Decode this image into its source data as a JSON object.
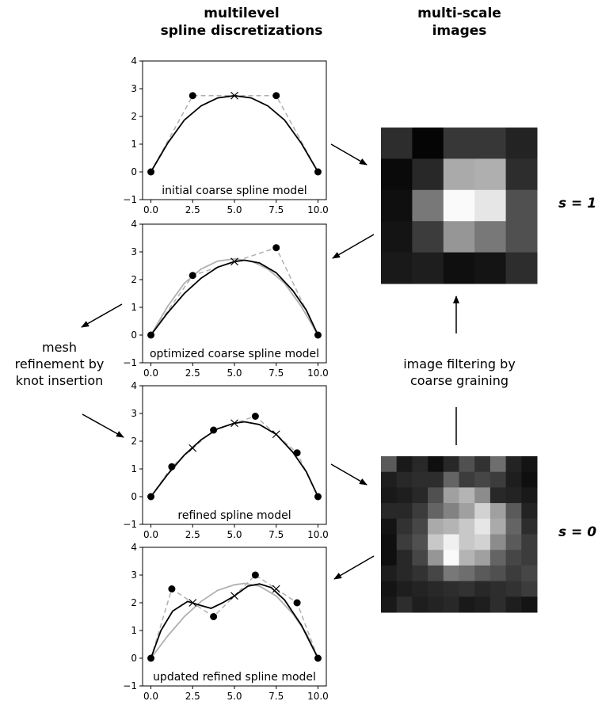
{
  "headers": {
    "left_line1": "multilevel",
    "left_line2": "spline discretizations",
    "right_line1": "multi-scale",
    "right_line2": "images"
  },
  "annotations": {
    "mesh_line1": "mesh",
    "mesh_line2": "refinement by",
    "mesh_line3": "knot insertion",
    "filter_line1": "image filtering by",
    "filter_line2": "coarse graining",
    "scale_coarse": "s = 1",
    "scale_fine": "s = 0"
  },
  "x_tick_labels": [
    "0.0",
    "2.5",
    "5.0",
    "7.5",
    "10.0"
  ],
  "y_tick_labels": [
    "−1",
    "0",
    "1",
    "2",
    "3",
    "4"
  ],
  "chart_data": [
    {
      "type": "line",
      "caption": "initial coarse spline model",
      "xlim": [
        -0.5,
        10.5
      ],
      "ylim": [
        -1,
        4
      ],
      "control_points": [
        [
          0,
          0
        ],
        [
          2.5,
          2.75
        ],
        [
          7.5,
          2.75
        ],
        [
          10,
          0
        ]
      ],
      "knots": [
        [
          5,
          2.75
        ]
      ],
      "reference_curve": [],
      "spline_curve": [
        [
          0,
          0
        ],
        [
          1,
          1.03
        ],
        [
          2,
          1.87
        ],
        [
          3,
          2.38
        ],
        [
          4,
          2.67
        ],
        [
          5,
          2.75
        ],
        [
          6,
          2.67
        ],
        [
          7,
          2.38
        ],
        [
          8,
          1.87
        ],
        [
          9,
          1.03
        ],
        [
          10,
          0
        ]
      ]
    },
    {
      "type": "line",
      "caption": "optimized coarse spline model",
      "xlim": [
        -0.5,
        10.5
      ],
      "ylim": [
        -1,
        4
      ],
      "control_points": [
        [
          0,
          0
        ],
        [
          2.5,
          2.15
        ],
        [
          7.5,
          3.15
        ],
        [
          10,
          0
        ]
      ],
      "knots": [
        [
          5,
          2.65
        ]
      ],
      "reference_curve": [
        [
          0,
          0
        ],
        [
          1,
          1.03
        ],
        [
          2,
          1.87
        ],
        [
          3,
          2.38
        ],
        [
          4,
          2.67
        ],
        [
          5,
          2.75
        ],
        [
          6,
          2.67
        ],
        [
          7,
          2.38
        ],
        [
          8,
          1.87
        ],
        [
          9,
          1.03
        ],
        [
          10,
          0
        ]
      ],
      "spline_curve": [
        [
          0,
          0
        ],
        [
          1,
          0.8
        ],
        [
          2,
          1.5
        ],
        [
          3,
          2.05
        ],
        [
          4,
          2.45
        ],
        [
          5,
          2.65
        ],
        [
          5.6,
          2.7
        ],
        [
          6.5,
          2.6
        ],
        [
          7.5,
          2.25
        ],
        [
          8.5,
          1.6
        ],
        [
          9.3,
          0.9
        ],
        [
          10,
          0
        ]
      ]
    },
    {
      "type": "line",
      "caption": "refined spline model",
      "xlim": [
        -0.5,
        10.5
      ],
      "ylim": [
        -1,
        4
      ],
      "control_points": [
        [
          0,
          0
        ],
        [
          1.25,
          1.08
        ],
        [
          3.75,
          2.4
        ],
        [
          6.25,
          2.9
        ],
        [
          8.75,
          1.58
        ],
        [
          10,
          0
        ]
      ],
      "knots": [
        [
          2.5,
          1.75
        ],
        [
          5,
          2.65
        ],
        [
          7.5,
          2.25
        ]
      ],
      "reference_curve": [],
      "spline_curve": [
        [
          0,
          0
        ],
        [
          1,
          0.8
        ],
        [
          2,
          1.5
        ],
        [
          3,
          2.05
        ],
        [
          4,
          2.45
        ],
        [
          5,
          2.65
        ],
        [
          5.6,
          2.7
        ],
        [
          6.5,
          2.6
        ],
        [
          7.5,
          2.25
        ],
        [
          8.5,
          1.6
        ],
        [
          9.3,
          0.9
        ],
        [
          10,
          0
        ]
      ]
    },
    {
      "type": "line",
      "caption": "updated refined spline model",
      "xlim": [
        -0.5,
        10.5
      ],
      "ylim": [
        -1,
        4
      ],
      "control_points": [
        [
          0,
          0
        ],
        [
          1.25,
          2.5
        ],
        [
          3.75,
          1.5
        ],
        [
          6.25,
          3.0
        ],
        [
          8.75,
          2.0
        ],
        [
          10,
          0
        ]
      ],
      "knots": [
        [
          2.5,
          2.0
        ],
        [
          5,
          2.25
        ],
        [
          7.5,
          2.5
        ]
      ],
      "reference_curve": [
        [
          0,
          0
        ],
        [
          1,
          0.8
        ],
        [
          2,
          1.5
        ],
        [
          3,
          2.05
        ],
        [
          4,
          2.45
        ],
        [
          5,
          2.65
        ],
        [
          5.6,
          2.7
        ],
        [
          6.5,
          2.6
        ],
        [
          7.5,
          2.25
        ],
        [
          8.5,
          1.6
        ],
        [
          9.3,
          0.9
        ],
        [
          10,
          0
        ]
      ],
      "spline_curve": [
        [
          0,
          0
        ],
        [
          0.6,
          1.0
        ],
        [
          1.3,
          1.7
        ],
        [
          2.2,
          2.05
        ],
        [
          3.0,
          1.9
        ],
        [
          3.6,
          1.8
        ],
        [
          4.3,
          2.0
        ],
        [
          5,
          2.25
        ],
        [
          5.8,
          2.6
        ],
        [
          6.5,
          2.68
        ],
        [
          7.2,
          2.55
        ],
        [
          8.0,
          2.1
        ],
        [
          9.0,
          1.2
        ],
        [
          10,
          0
        ]
      ]
    }
  ],
  "images": [
    {
      "scale": "s = 1",
      "grid": [
        [
          45,
          5,
          55,
          55,
          35
        ],
        [
          10,
          40,
          170,
          175,
          45
        ],
        [
          15,
          120,
          250,
          230,
          80
        ],
        [
          20,
          60,
          150,
          120,
          80
        ],
        [
          25,
          30,
          15,
          20,
          45
        ]
      ]
    },
    {
      "scale": "s = 0",
      "grid": [
        [
          90,
          25,
          40,
          15,
          40,
          80,
          50,
          110,
          35,
          20
        ],
        [
          30,
          40,
          45,
          45,
          100,
          60,
          70,
          60,
          30,
          15
        ],
        [
          25,
          30,
          40,
          80,
          160,
          180,
          140,
          40,
          35,
          25
        ],
        [
          40,
          40,
          60,
          100,
          130,
          160,
          210,
          160,
          90,
          35
        ],
        [
          20,
          50,
          70,
          170,
          180,
          200,
          230,
          170,
          100,
          45
        ],
        [
          15,
          60,
          80,
          200,
          240,
          200,
          210,
          140,
          90,
          60
        ],
        [
          15,
          40,
          70,
          150,
          250,
          180,
          160,
          100,
          70,
          60
        ],
        [
          30,
          40,
          50,
          70,
          120,
          110,
          90,
          80,
          60,
          70
        ],
        [
          20,
          30,
          35,
          40,
          45,
          50,
          40,
          45,
          50,
          60
        ],
        [
          25,
          45,
          30,
          35,
          40,
          25,
          30,
          45,
          30,
          20
        ]
      ]
    }
  ]
}
